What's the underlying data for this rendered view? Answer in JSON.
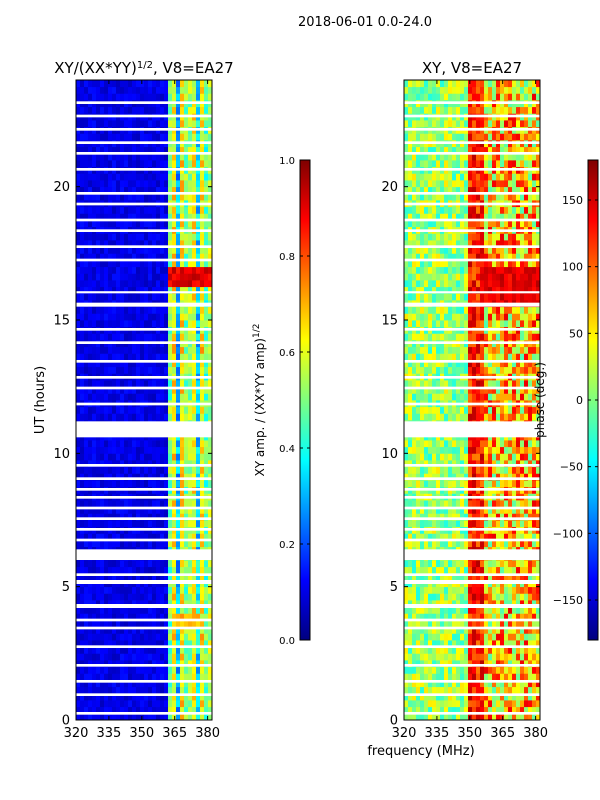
{
  "suptitle": "2018-06-01 0.0-24.0",
  "chart_data": [
    {
      "type": "heatmap",
      "title_base": "XY/(XX*YY)",
      "title_sup": "1/2",
      "title_tail": ", V8=EA27",
      "xlabel": "",
      "ylabel": "UT (hours)",
      "xlim": [
        320,
        382
      ],
      "ylim": [
        0,
        24
      ],
      "xticks": [
        320,
        335,
        350,
        365,
        380
      ],
      "yticks": [
        0,
        5,
        10,
        15,
        20
      ],
      "colorbar": {
        "label_base": "XY amp. / (XX*YY amp)",
        "label_sup": "1/2",
        "range": [
          0.0,
          1.0
        ],
        "ticks": [
          "0.0",
          "0.2",
          "0.4",
          "0.6",
          "0.8",
          "1.0"
        ],
        "colormap": "jet"
      }
    },
    {
      "type": "heatmap",
      "title": "XY, V8=EA27",
      "xlabel": "frequency (MHz)",
      "ylabel": "",
      "xlim": [
        320,
        382
      ],
      "ylim": [
        0,
        24
      ],
      "xticks": [
        320,
        335,
        350,
        365,
        380
      ],
      "yticks": [
        0,
        5,
        10,
        15,
        20
      ],
      "colorbar": {
        "label": "phase (deg.)",
        "range": [
          -180,
          180
        ],
        "ticks": [
          "150",
          "100",
          "50",
          "0",
          "−50",
          "−100",
          "−150"
        ],
        "tick_values": [
          150,
          100,
          50,
          0,
          -50,
          -100,
          -150
        ],
        "colormap": "jet"
      }
    }
  ],
  "flagged_hours": [
    [
      0.2,
      0.3
    ],
    [
      0.9,
      1.0
    ],
    [
      1.4,
      1.5
    ],
    [
      2.0,
      2.1
    ],
    [
      2.7,
      2.8
    ],
    [
      3.4,
      3.5
    ],
    [
      3.7,
      3.8
    ],
    [
      4.2,
      4.35
    ],
    [
      5.1,
      5.25
    ],
    [
      5.4,
      5.5
    ],
    [
      6.0,
      6.4
    ],
    [
      6.7,
      6.8
    ],
    [
      7.1,
      7.2
    ],
    [
      7.5,
      7.6
    ],
    [
      7.9,
      8.0
    ],
    [
      8.3,
      8.4
    ],
    [
      8.6,
      8.7
    ],
    [
      9.0,
      9.1
    ],
    [
      9.5,
      9.6
    ],
    [
      10.6,
      11.2
    ],
    [
      11.8,
      11.9
    ],
    [
      12.4,
      12.5
    ],
    [
      12.8,
      12.9
    ],
    [
      13.4,
      13.5
    ],
    [
      14.1,
      14.2
    ],
    [
      14.6,
      14.7
    ],
    [
      15.5,
      15.65
    ],
    [
      16.0,
      16.08
    ],
    [
      17.2,
      17.3
    ],
    [
      17.7,
      17.8
    ],
    [
      18.3,
      18.4
    ],
    [
      18.7,
      18.8
    ],
    [
      19.3,
      19.4
    ],
    [
      19.7,
      19.8
    ],
    [
      20.6,
      20.7
    ],
    [
      21.2,
      21.3
    ],
    [
      21.6,
      21.7
    ],
    [
      22.1,
      22.2
    ],
    [
      22.6,
      22.7
    ],
    [
      23.1,
      23.2
    ]
  ]
}
